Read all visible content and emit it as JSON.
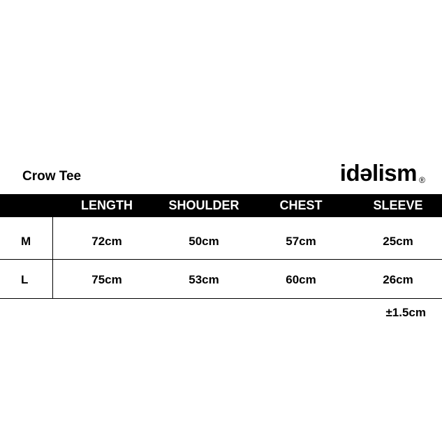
{
  "title": "Crow Tee",
  "brand": "idəlism",
  "brand_mark": "®",
  "table": {
    "columns": [
      "LENGTH",
      "SHOULDER",
      "CHEST",
      "SLEEVE"
    ],
    "rows": [
      [
        "M",
        "72cm",
        "50cm",
        "57cm",
        "25cm"
      ],
      [
        "L",
        "75cm",
        "53cm",
        "60cm",
        "26cm"
      ]
    ]
  },
  "tolerance": "±1.5cm"
}
